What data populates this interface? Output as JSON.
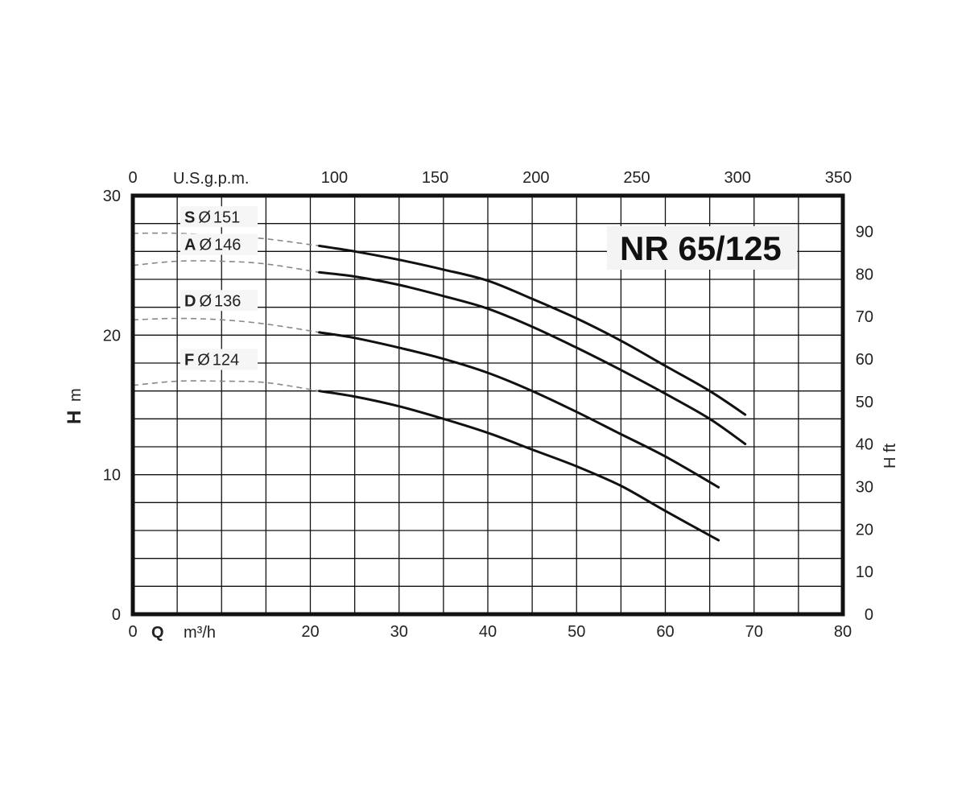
{
  "chart_data": {
    "type": "line",
    "title": "NR 65/125",
    "xlabel_symbol": "Q",
    "xlabel_unit": "m³/h",
    "x_secondary_label": "U.S.g.p.m.",
    "ylabel_symbol": "H",
    "ylabel_unit": "m",
    "y_secondary_label": "H ft",
    "xlim": [
      0,
      80
    ],
    "ylim": [
      0,
      30
    ],
    "x_ticks": [
      "0",
      "20",
      "30",
      "40",
      "50",
      "60",
      "70",
      "80"
    ],
    "y_ticks": [
      "0",
      "10",
      "20",
      "30"
    ],
    "x_secondary_ticks": [
      "0",
      "100",
      "150",
      "200",
      "250",
      "300",
      "350"
    ],
    "y_secondary_ticks": [
      "0",
      "10",
      "20",
      "30",
      "40",
      "50",
      "60",
      "70",
      "80",
      "90"
    ],
    "grid": true,
    "series": [
      {
        "letter": "S",
        "diameter": "151",
        "dashed": [
          [
            0,
            27.3
          ],
          [
            5,
            27.3
          ],
          [
            10,
            27.1
          ],
          [
            15,
            26.9
          ],
          [
            21,
            26.4
          ]
        ],
        "solid": [
          [
            21,
            26.4
          ],
          [
            25,
            26.0
          ],
          [
            30,
            25.4
          ],
          [
            35,
            24.7
          ],
          [
            40,
            23.9
          ],
          [
            45,
            22.6
          ],
          [
            50,
            21.2
          ],
          [
            55,
            19.6
          ],
          [
            60,
            17.8
          ],
          [
            65,
            16.0
          ],
          [
            69,
            14.3
          ]
        ]
      },
      {
        "letter": "A",
        "diameter": "146",
        "dashed": [
          [
            0,
            25.0
          ],
          [
            5,
            25.3
          ],
          [
            10,
            25.3
          ],
          [
            15,
            25.1
          ],
          [
            21,
            24.5
          ]
        ],
        "solid": [
          [
            21,
            24.5
          ],
          [
            25,
            24.2
          ],
          [
            30,
            23.6
          ],
          [
            35,
            22.8
          ],
          [
            40,
            21.9
          ],
          [
            45,
            20.6
          ],
          [
            50,
            19.1
          ],
          [
            55,
            17.5
          ],
          [
            60,
            15.8
          ],
          [
            65,
            14.0
          ],
          [
            69,
            12.2
          ]
        ]
      },
      {
        "letter": "D",
        "diameter": "136",
        "dashed": [
          [
            0,
            21.1
          ],
          [
            5,
            21.2
          ],
          [
            10,
            21.1
          ],
          [
            15,
            20.8
          ],
          [
            21,
            20.2
          ]
        ],
        "solid": [
          [
            21,
            20.2
          ],
          [
            25,
            19.8
          ],
          [
            30,
            19.1
          ],
          [
            35,
            18.3
          ],
          [
            40,
            17.3
          ],
          [
            45,
            16.0
          ],
          [
            50,
            14.5
          ],
          [
            55,
            12.9
          ],
          [
            60,
            11.3
          ],
          [
            66,
            9.1
          ]
        ]
      },
      {
        "letter": "F",
        "diameter": "124",
        "dashed": [
          [
            0,
            16.4
          ],
          [
            5,
            16.7
          ],
          [
            10,
            16.7
          ],
          [
            15,
            16.6
          ],
          [
            21,
            16.0
          ]
        ],
        "solid": [
          [
            21,
            16.0
          ],
          [
            25,
            15.6
          ],
          [
            30,
            14.9
          ],
          [
            35,
            14.0
          ],
          [
            40,
            13.0
          ],
          [
            45,
            11.8
          ],
          [
            50,
            10.6
          ],
          [
            55,
            9.2
          ],
          [
            60,
            7.4
          ],
          [
            66,
            5.3
          ]
        ]
      }
    ],
    "diameter_symbol": "Ø"
  }
}
